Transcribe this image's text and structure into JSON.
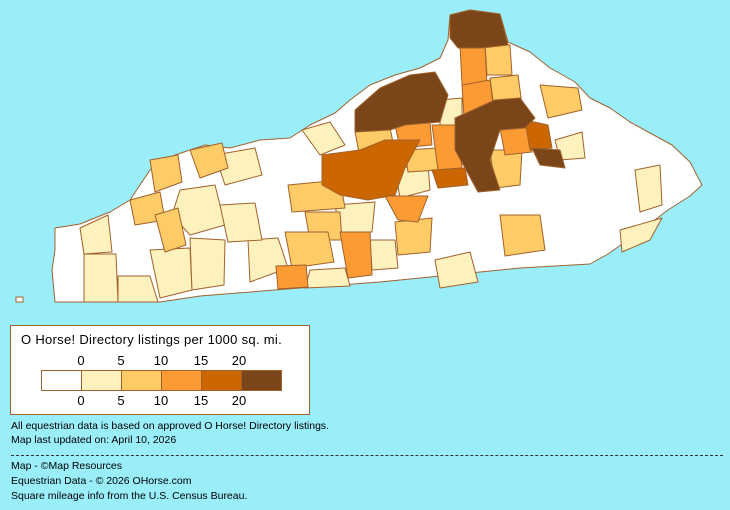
{
  "legend": {
    "title": "O Horse! Directory listings per 1000 sq. mi.",
    "top_ticks": [
      "0",
      "5",
      "10",
      "15",
      "20"
    ],
    "bottom_ticks": [
      "0",
      "5",
      "10",
      "15",
      "20"
    ],
    "colors": [
      "#ffffff",
      "#fdf2bd",
      "#fdcc66",
      "#fc9a33",
      "#cc6600",
      "#7a4519"
    ]
  },
  "notes": {
    "line1": "All equestrian data is based on approved O Horse! Directory listings.",
    "line2": "Map last updated on: April 10, 2026"
  },
  "credits": {
    "map": "Map - ©Map Resources",
    "equestrian": "Equestrian Data - © 2026 OHorse.com",
    "census": "Square mileage info from the U.S. Census Bureau."
  },
  "colors": {
    "background": "#99eefa",
    "border": "#a0622d"
  }
}
